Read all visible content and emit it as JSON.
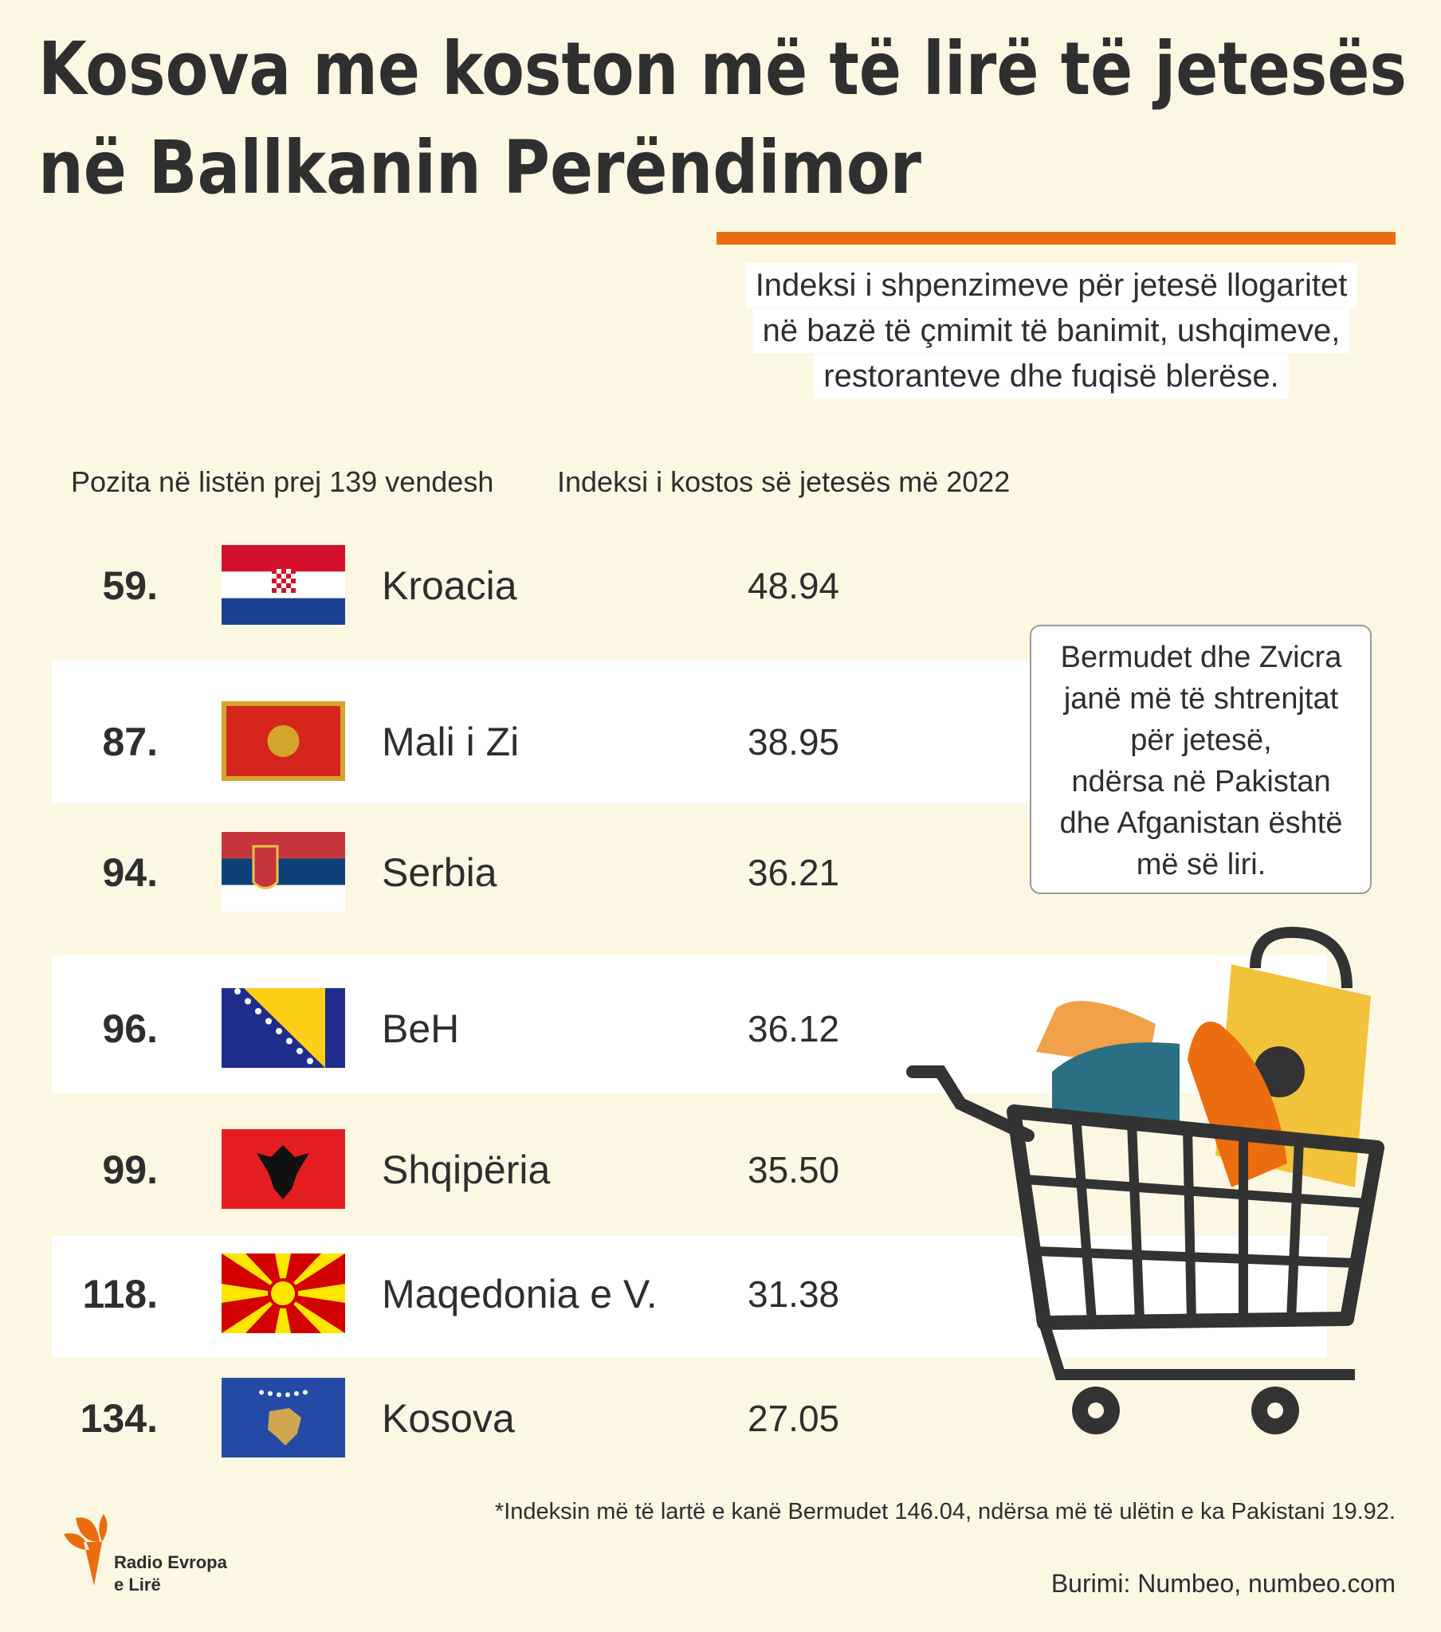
{
  "header": {
    "title_lines": [
      "Kosova me koston më të lirë të jetesës",
      "në Ballkanin Perëndimor"
    ],
    "description_lines": [
      "Indeksi i shpenzimeve për jetesë llogaritet",
      "në bazë të çmimit të banimit, ushqimeve,",
      "restoranteve dhe fuqisë blerëse."
    ]
  },
  "table": {
    "columns": [
      "Pozita në listën prej 139 vendesh",
      "Indeksi i kostos së jetesës më 2022"
    ],
    "rows": [
      [
        "59.",
        "Kroacia",
        "48.94"
      ],
      [
        "87.",
        "Mali i Zi",
        "38.95"
      ],
      [
        "94.",
        "Serbia",
        "36.21"
      ],
      [
        "96.",
        "BeH",
        "36.12"
      ],
      [
        "99.",
        "Shqipëria",
        "35.50"
      ],
      [
        "118.",
        "Maqedonia e V.",
        "31.38"
      ],
      [
        "134.",
        "Kosova",
        "27.05"
      ]
    ]
  },
  "note_lines": [
    "Bermudet dhe Zvicra",
    "janë më të shtrenjtat",
    "për jetesë,",
    "ndërsa në Pakistan",
    "dhe Afganistan është",
    "më së liri."
  ],
  "footnote": "*Indeksin më të lartë e kanë Bermudet 146.04, ndërsa më të ulëtin e ka Pakistani 19.92.",
  "logo_lines": [
    "Radio Evropa",
    "e Lirë"
  ],
  "source": "Burimi: Numbeo, numbeo.com"
}
